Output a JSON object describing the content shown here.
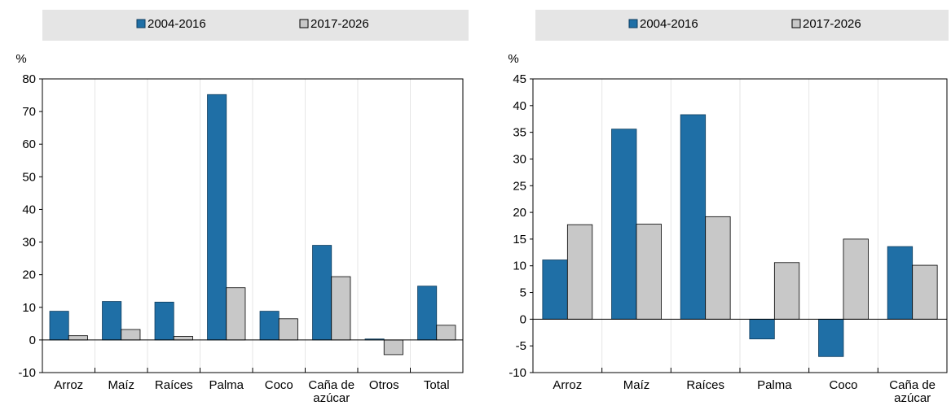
{
  "colors": {
    "series1": "#1f6fa6",
    "series1_stroke": "#0d3c5e",
    "series2": "#c8c8c8",
    "series2_stroke": "#000000",
    "legend_bg": "#e5e5e5",
    "grid": "#ffffff",
    "axis": "#000000"
  },
  "chart_data": [
    {
      "type": "bar",
      "ylabel": "%",
      "ylim": [
        -10,
        80
      ],
      "yticks": [
        -10,
        0,
        10,
        20,
        30,
        40,
        50,
        60,
        70,
        80
      ],
      "grid": true,
      "legend_position": "top",
      "categories": [
        "Arroz",
        "Maíz",
        "Raíces",
        "Palma",
        "Coco",
        [
          "Caña de",
          "azúcar"
        ],
        "Otros",
        "Total"
      ],
      "series": [
        {
          "name": "2004-2016",
          "values": [
            8.8,
            11.8,
            11.6,
            75.2,
            8.8,
            29.0,
            0.3,
            16.5
          ]
        },
        {
          "name": "2017-2026",
          "values": [
            1.3,
            3.2,
            1.1,
            16.0,
            6.5,
            19.4,
            -4.5,
            4.5
          ]
        }
      ]
    },
    {
      "type": "bar",
      "ylabel": "%",
      "ylim": [
        -10,
        45
      ],
      "yticks": [
        -10,
        -5,
        0,
        5,
        10,
        15,
        20,
        25,
        30,
        35,
        40,
        45
      ],
      "grid": true,
      "legend_position": "top",
      "categories": [
        "Arroz",
        "Maíz",
        "Raíces",
        "Palma",
        "Coco",
        [
          "Caña de",
          "azúcar"
        ]
      ],
      "series": [
        {
          "name": "2004-2016",
          "values": [
            11.1,
            35.6,
            38.3,
            -3.7,
            -7.0,
            13.6
          ]
        },
        {
          "name": "2017-2026",
          "values": [
            17.7,
            17.8,
            19.2,
            10.6,
            15.0,
            10.1
          ]
        }
      ]
    }
  ]
}
